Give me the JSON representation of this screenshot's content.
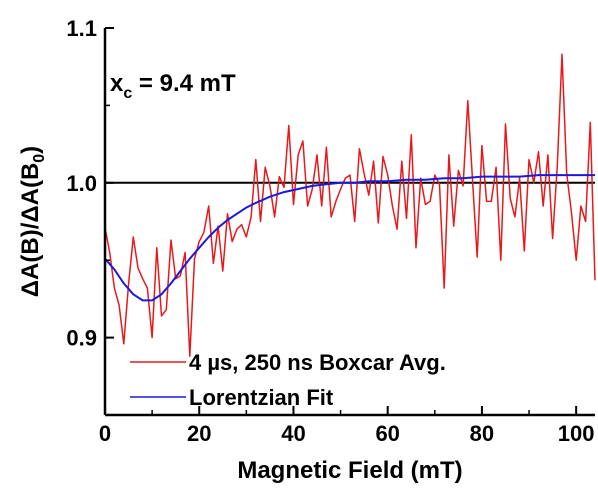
{
  "chart_data": {
    "type": "line",
    "xlabel": "Magnetic Field (mT)",
    "ylabel": "ΔA(B)/ΔA(B0)",
    "ylabel_parts": {
      "main": "ΔA(B)/ΔA(B",
      "sub": "0",
      "close": ")"
    },
    "xlim": [
      0,
      104
    ],
    "ylim": [
      0.85,
      1.1
    ],
    "xticks": [
      0,
      20,
      40,
      60,
      80,
      100
    ],
    "yticks": [
      0.9,
      1.0,
      1.1
    ],
    "xtick_labels": [
      "0",
      "20",
      "40",
      "60",
      "80",
      "100"
    ],
    "ytick_labels": [
      "0.9",
      "1.0",
      "1.1"
    ],
    "reference_line": 1.0,
    "annotation": {
      "main": "x",
      "sub": "c",
      "rest": " = 9.4 mT"
    },
    "legend": {
      "position": "bottom-left"
    },
    "colors": {
      "data": "#e8191b",
      "fit": "#1a1adc",
      "reference": "#000000"
    },
    "series": [
      {
        "name": "4 µs, 250 ns Boxcar Avg.",
        "color": "#e8191b",
        "x": [
          0,
          1,
          2,
          3,
          4,
          5,
          6,
          7,
          8,
          9,
          10,
          11,
          12,
          13,
          14,
          15,
          16,
          17,
          18,
          19,
          20,
          21,
          22,
          23,
          24,
          25,
          26,
          27,
          28,
          29,
          30,
          31,
          32,
          33,
          34,
          35,
          36,
          37,
          38,
          39,
          40,
          41,
          42,
          43,
          44,
          45,
          46,
          47,
          48,
          49,
          50,
          51,
          52,
          53,
          54,
          55,
          56,
          57,
          58,
          59,
          60,
          61,
          62,
          63,
          64,
          65,
          66,
          67,
          68,
          69,
          70,
          71,
          72,
          73,
          74,
          75,
          76,
          77,
          78,
          79,
          80,
          81,
          82,
          83,
          84,
          85,
          86,
          87,
          88,
          89,
          90,
          91,
          92,
          93,
          94,
          95,
          96,
          97,
          98,
          99,
          100,
          101,
          102,
          103,
          104
        ],
        "y": [
          0.971,
          0.955,
          0.932,
          0.921,
          0.896,
          0.935,
          0.965,
          0.945,
          0.938,
          0.932,
          0.9,
          0.958,
          0.914,
          0.918,
          0.963,
          0.938,
          0.94,
          0.955,
          0.888,
          0.951,
          0.962,
          0.968,
          0.985,
          0.948,
          0.972,
          0.943,
          0.98,
          0.962,
          0.97,
          0.973,
          0.965,
          0.978,
          1.015,
          0.975,
          1.01,
          0.998,
          0.978,
          1.004,
          0.997,
          1.037,
          0.986,
          1.018,
          1.027,
          0.985,
          0.996,
          1.018,
          0.985,
          1.023,
          0.978,
          0.988,
          0.996,
          1.003,
          1.005,
          0.975,
          1.022,
          1.006,
          0.992,
          1.014,
          0.974,
          1.017,
          1.005,
          0.985,
          0.97,
          1.014,
          0.977,
          1.031,
          0.958,
          1.003,
          0.986,
          0.988,
          1.005,
          0.999,
          0.932,
          1.018,
          0.972,
          1.008,
          0.998,
          1.053,
          1.002,
          0.952,
          1.024,
          0.988,
          0.988,
          1.01,
          0.95,
          1.038,
          0.99,
          0.978,
          1.003,
          0.956,
          1.015,
          1.0,
          1.02,
          0.985,
          1.018,
          0.964,
          1.011,
          1.083,
          1.006,
          0.981,
          0.95,
          0.985,
          0.975,
          1.039,
          0.937
        ]
      },
      {
        "name": "Lorentzian Fit",
        "color": "#1a1adc",
        "x": [
          0,
          2,
          4,
          6,
          8,
          10,
          12,
          14,
          16,
          18,
          20,
          22,
          24,
          26,
          28,
          30,
          32,
          35,
          38,
          41,
          44,
          47,
          50,
          53,
          56,
          60,
          64,
          68,
          72,
          76,
          80,
          84,
          88,
          92,
          96,
          100,
          104
        ],
        "y": [
          0.951,
          0.944,
          0.935,
          0.928,
          0.924,
          0.924,
          0.928,
          0.935,
          0.943,
          0.951,
          0.958,
          0.965,
          0.971,
          0.976,
          0.98,
          0.984,
          0.987,
          0.991,
          0.994,
          0.996,
          0.998,
          0.999,
          1.0,
          1.0,
          1.001,
          1.001,
          1.002,
          1.002,
          1.003,
          1.003,
          1.004,
          1.004,
          1.004,
          1.005,
          1.005,
          1.005,
          1.005
        ]
      }
    ]
  }
}
